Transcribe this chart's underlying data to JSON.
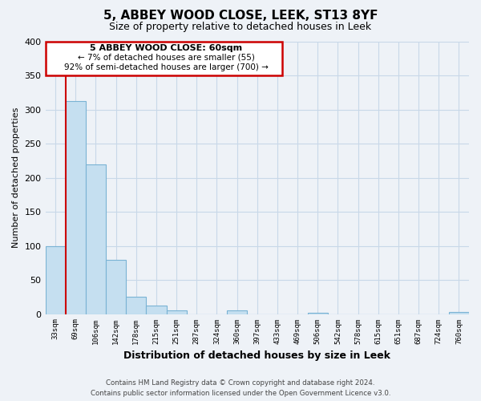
{
  "title": "5, ABBEY WOOD CLOSE, LEEK, ST13 8YF",
  "subtitle": "Size of property relative to detached houses in Leek",
  "xlabel": "Distribution of detached houses by size in Leek",
  "ylabel": "Number of detached properties",
  "bar_labels": [
    "33sqm",
    "69sqm",
    "106sqm",
    "142sqm",
    "178sqm",
    "215sqm",
    "251sqm",
    "287sqm",
    "324sqm",
    "360sqm",
    "397sqm",
    "433sqm",
    "469sqm",
    "506sqm",
    "542sqm",
    "578sqm",
    "615sqm",
    "651sqm",
    "687sqm",
    "724sqm",
    "760sqm"
  ],
  "bar_values": [
    99,
    312,
    220,
    80,
    25,
    12,
    5,
    0,
    0,
    5,
    0,
    0,
    0,
    2,
    0,
    0,
    0,
    0,
    0,
    0,
    3
  ],
  "bar_color": "#c5dff0",
  "bar_edge_color": "#7ab3d4",
  "ylim": [
    0,
    400
  ],
  "yticks": [
    0,
    50,
    100,
    150,
    200,
    250,
    300,
    350,
    400
  ],
  "red_line_color": "#cc0000",
  "annotation_box_edge": "#cc0000",
  "annotation_line1": "5 ABBEY WOOD CLOSE: 60sqm",
  "annotation_line2": "← 7% of detached houses are smaller (55)",
  "annotation_line3": "92% of semi-detached houses are larger (700) →",
  "footer_line1": "Contains HM Land Registry data © Crown copyright and database right 2024.",
  "footer_line2": "Contains public sector information licensed under the Open Government Licence v3.0.",
  "bg_color": "#eef2f7",
  "grid_color": "#d0dce8",
  "title_fontsize": 11,
  "subtitle_fontsize": 9
}
